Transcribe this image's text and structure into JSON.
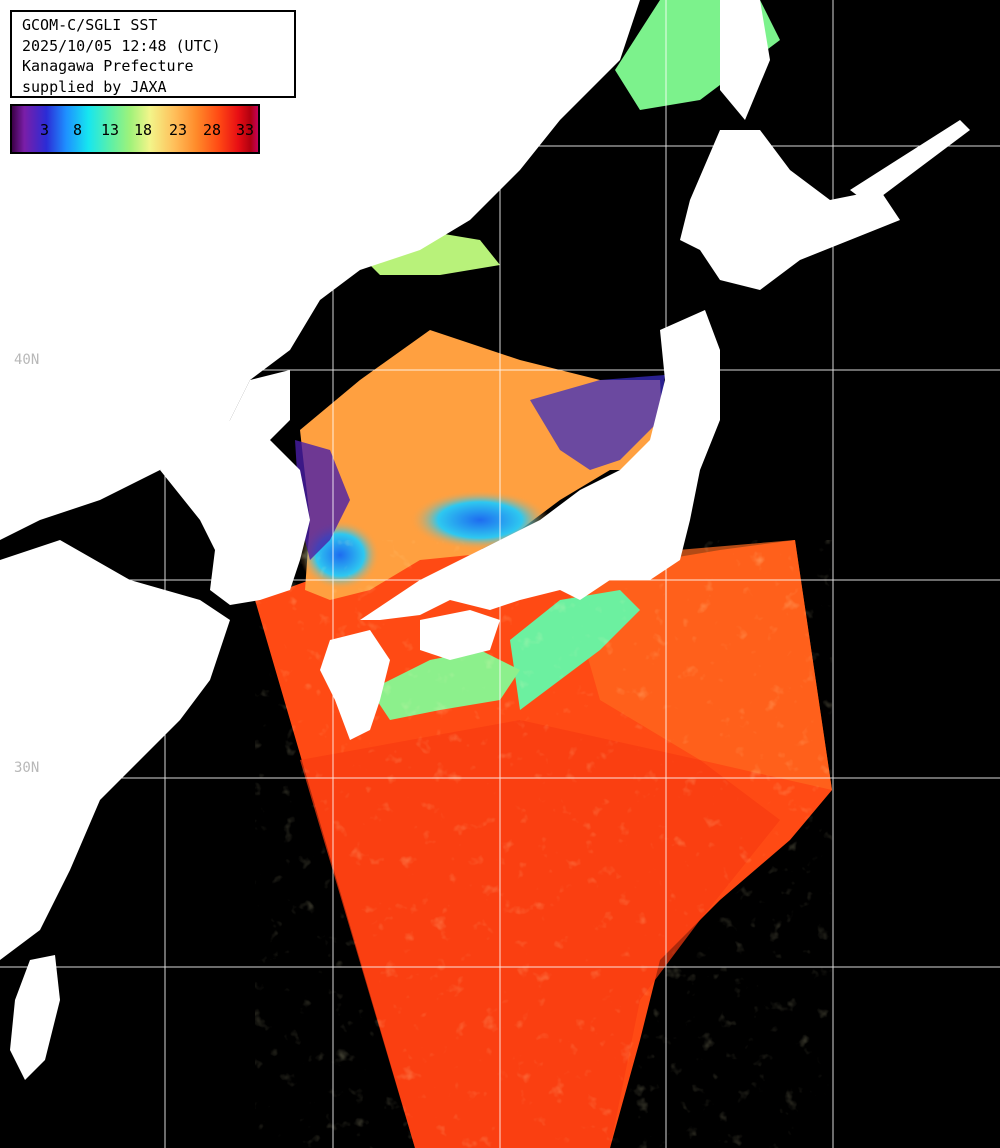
{
  "header": {
    "line1": "GCOM-C/SGLI SST",
    "line2": "2025/10/05 12:48 (UTC)",
    "line3": "Kanagawa Prefecture",
    "line4": "supplied by JAXA"
  },
  "legend": {
    "ticks": [
      "3",
      "8",
      "13",
      "18",
      "23",
      "28",
      "33"
    ]
  },
  "lat_labels": {
    "l40": "40N",
    "l30": "30N"
  },
  "colors": {
    "land": "#ffffff",
    "cloud": "#000000",
    "warm": "#ff4a14",
    "cold": "#2b2cd6"
  }
}
